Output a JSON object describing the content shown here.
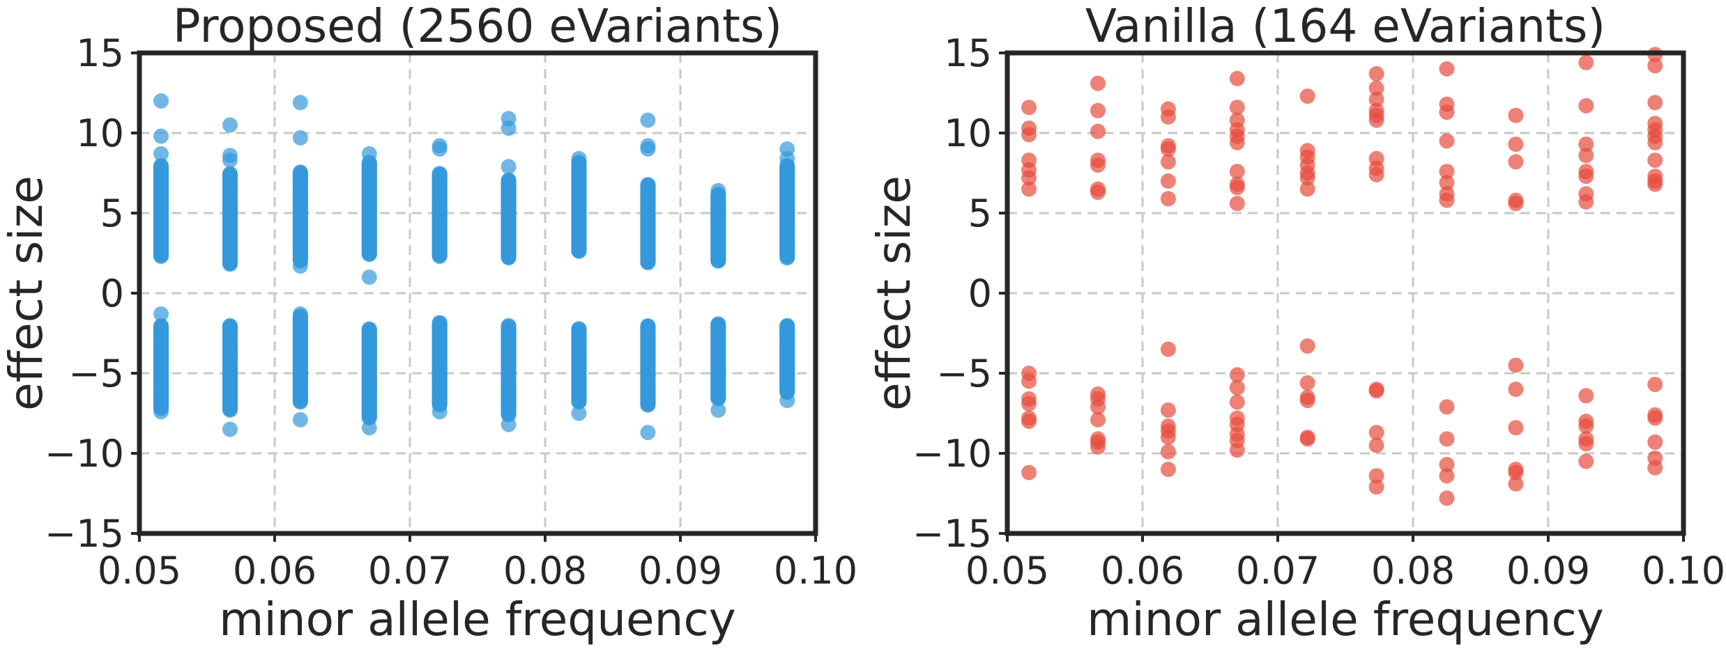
{
  "chart_data": [
    {
      "type": "scatter",
      "title": "Proposed (2560 eVariants)",
      "xlabel": "minor allele frequency",
      "ylabel": "effect size",
      "xlim": [
        0.05,
        0.1
      ],
      "ylim": [
        -15,
        15
      ],
      "xticks": [
        0.05,
        0.06,
        0.07,
        0.08,
        0.09,
        0.1
      ],
      "xtick_labels": [
        "0.05",
        "0.06",
        "0.07",
        "0.08",
        "0.09",
        "0.10"
      ],
      "yticks": [
        -15,
        -10,
        -5,
        0,
        5,
        10,
        15
      ],
      "ytick_labels": [
        "−15",
        "−10",
        "−5",
        "0",
        "5",
        "10",
        "15"
      ],
      "grid": true,
      "color": "#3498db",
      "opacity": 0.7,
      "x_positions": [
        0.0516,
        0.0567,
        0.0619,
        0.067,
        0.0722,
        0.0773,
        0.0825,
        0.0876,
        0.0928,
        0.0979
      ],
      "columns": [
        {
          "x": 0.0516,
          "upper_range": [
            2.3,
            8.0
          ],
          "lower_range": [
            -7.2,
            -2.0
          ],
          "outliers": [
            12.0,
            9.8,
            8.7,
            -1.3,
            -7.4
          ]
        },
        {
          "x": 0.0567,
          "upper_range": [
            1.8,
            7.5
          ],
          "lower_range": [
            -7.3,
            -2.0
          ],
          "outliers": [
            10.5,
            8.6,
            8.3,
            -8.5
          ]
        },
        {
          "x": 0.0619,
          "upper_range": [
            2.0,
            7.6
          ],
          "lower_range": [
            -6.8,
            -1.4
          ],
          "outliers": [
            11.9,
            9.7,
            1.7,
            -1.3,
            -7.9
          ]
        },
        {
          "x": 0.067,
          "upper_range": [
            2.4,
            8.2
          ],
          "lower_range": [
            -7.8,
            -2.2
          ],
          "outliers": [
            8.7,
            1.0,
            -8.4
          ]
        },
        {
          "x": 0.0722,
          "upper_range": [
            2.3,
            7.5
          ],
          "lower_range": [
            -7.0,
            -1.8
          ],
          "outliers": [
            9.2,
            9.0,
            -7.4
          ]
        },
        {
          "x": 0.0773,
          "upper_range": [
            2.2,
            7.1
          ],
          "lower_range": [
            -7.6,
            -2.0
          ],
          "outliers": [
            10.9,
            10.3,
            7.9,
            -8.2
          ]
        },
        {
          "x": 0.0825,
          "upper_range": [
            2.6,
            8.2
          ],
          "lower_range": [
            -6.8,
            -2.2
          ],
          "outliers": [
            8.4,
            -7.5
          ]
        },
        {
          "x": 0.0876,
          "upper_range": [
            1.9,
            6.8
          ],
          "lower_range": [
            -7.0,
            -2.0
          ],
          "outliers": [
            10.8,
            9.2,
            9.0,
            -8.7
          ]
        },
        {
          "x": 0.0928,
          "upper_range": [
            2.0,
            6.2
          ],
          "lower_range": [
            -6.6,
            -1.9
          ],
          "outliers": [
            6.4,
            -7.3
          ]
        },
        {
          "x": 0.0979,
          "upper_range": [
            2.2,
            8.0
          ],
          "lower_range": [
            -6.2,
            -2.0
          ],
          "outliers": [
            9.0,
            8.4,
            -6.7
          ]
        }
      ]
    },
    {
      "type": "scatter",
      "title": "Vanilla (164 eVariants)",
      "xlabel": "minor allele frequency",
      "ylabel": "effect size",
      "xlim": [
        0.05,
        0.1
      ],
      "ylim": [
        -15,
        15
      ],
      "xticks": [
        0.05,
        0.06,
        0.07,
        0.08,
        0.09,
        0.1
      ],
      "xtick_labels": [
        "0.05",
        "0.06",
        "0.07",
        "0.08",
        "0.09",
        "0.10"
      ],
      "yticks": [
        -15,
        -10,
        -5,
        0,
        5,
        10,
        15
      ],
      "ytick_labels": [
        "−15",
        "−10",
        "−5",
        "0",
        "5",
        "10",
        "15"
      ],
      "grid": true,
      "color": "#e74c3c",
      "opacity": 0.7,
      "points": [
        [
          0.0516,
          11.6
        ],
        [
          0.0516,
          10.3
        ],
        [
          0.0516,
          9.9
        ],
        [
          0.0516,
          8.3
        ],
        [
          0.0516,
          7.7
        ],
        [
          0.0516,
          7.2
        ],
        [
          0.0516,
          6.5
        ],
        [
          0.0516,
          -5.0
        ],
        [
          0.0516,
          -5.5
        ],
        [
          0.0516,
          -6.6
        ],
        [
          0.0516,
          -6.9
        ],
        [
          0.0516,
          -7.8
        ],
        [
          0.0516,
          -8.0
        ],
        [
          0.0516,
          -11.2
        ],
        [
          0.0567,
          13.1
        ],
        [
          0.0567,
          11.4
        ],
        [
          0.0567,
          10.1
        ],
        [
          0.0567,
          8.3
        ],
        [
          0.0567,
          8.0
        ],
        [
          0.0567,
          6.5
        ],
        [
          0.0567,
          6.3
        ],
        [
          0.0567,
          -6.3
        ],
        [
          0.0567,
          -6.6
        ],
        [
          0.0567,
          -7.1
        ],
        [
          0.0567,
          -7.9
        ],
        [
          0.0567,
          -9.1
        ],
        [
          0.0567,
          -9.3
        ],
        [
          0.0567,
          -9.6
        ],
        [
          0.0619,
          11.5
        ],
        [
          0.0619,
          11.0
        ],
        [
          0.0619,
          9.2
        ],
        [
          0.0619,
          9.0
        ],
        [
          0.0619,
          8.2
        ],
        [
          0.0619,
          7.0
        ],
        [
          0.0619,
          5.9
        ],
        [
          0.0619,
          -3.5
        ],
        [
          0.0619,
          -7.3
        ],
        [
          0.0619,
          -8.3
        ],
        [
          0.0619,
          -8.6
        ],
        [
          0.0619,
          -9.0
        ],
        [
          0.0619,
          -9.9
        ],
        [
          0.0619,
          -11.0
        ],
        [
          0.067,
          13.4
        ],
        [
          0.067,
          11.6
        ],
        [
          0.067,
          10.8
        ],
        [
          0.067,
          10.2
        ],
        [
          0.067,
          9.8
        ],
        [
          0.067,
          9.4
        ],
        [
          0.067,
          7.6
        ],
        [
          0.067,
          6.8
        ],
        [
          0.067,
          6.6
        ],
        [
          0.067,
          5.6
        ],
        [
          0.067,
          -5.1
        ],
        [
          0.067,
          -5.9
        ],
        [
          0.067,
          -6.8
        ],
        [
          0.067,
          -7.8
        ],
        [
          0.067,
          -8.2
        ],
        [
          0.067,
          -8.8
        ],
        [
          0.067,
          -9.2
        ],
        [
          0.067,
          -9.8
        ],
        [
          0.0722,
          12.3
        ],
        [
          0.0722,
          8.9
        ],
        [
          0.0722,
          8.5
        ],
        [
          0.0722,
          8.0
        ],
        [
          0.0722,
          7.5
        ],
        [
          0.0722,
          7.2
        ],
        [
          0.0722,
          6.5
        ],
        [
          0.0722,
          -3.3
        ],
        [
          0.0722,
          -5.6
        ],
        [
          0.0722,
          -6.5
        ],
        [
          0.0722,
          -6.7
        ],
        [
          0.0722,
          -9.0
        ],
        [
          0.0722,
          -9.1
        ],
        [
          0.0773,
          13.7
        ],
        [
          0.0773,
          12.8
        ],
        [
          0.0773,
          12.1
        ],
        [
          0.0773,
          11.4
        ],
        [
          0.0773,
          11.1
        ],
        [
          0.0773,
          10.8
        ],
        [
          0.0773,
          8.4
        ],
        [
          0.0773,
          7.8
        ],
        [
          0.0773,
          7.4
        ],
        [
          0.0773,
          -6.0
        ],
        [
          0.0773,
          -6.1
        ],
        [
          0.0773,
          -8.7
        ],
        [
          0.0773,
          -9.5
        ],
        [
          0.0773,
          -11.4
        ],
        [
          0.0773,
          -12.1
        ],
        [
          0.0825,
          14.0
        ],
        [
          0.0825,
          11.8
        ],
        [
          0.0825,
          11.3
        ],
        [
          0.0825,
          9.5
        ],
        [
          0.0825,
          7.6
        ],
        [
          0.0825,
          6.9
        ],
        [
          0.0825,
          6.2
        ],
        [
          0.0825,
          5.8
        ],
        [
          0.0825,
          -7.1
        ],
        [
          0.0825,
          -9.1
        ],
        [
          0.0825,
          -10.7
        ],
        [
          0.0825,
          -11.4
        ],
        [
          0.0825,
          -12.8
        ],
        [
          0.0876,
          11.1
        ],
        [
          0.0876,
          9.3
        ],
        [
          0.0876,
          8.2
        ],
        [
          0.0876,
          5.8
        ],
        [
          0.0876,
          5.6
        ],
        [
          0.0876,
          -4.5
        ],
        [
          0.0876,
          -6.0
        ],
        [
          0.0876,
          -8.4
        ],
        [
          0.0876,
          -11.0
        ],
        [
          0.0876,
          -11.2
        ],
        [
          0.0876,
          -11.9
        ],
        [
          0.0928,
          14.4
        ],
        [
          0.0928,
          11.7
        ],
        [
          0.0928,
          9.3
        ],
        [
          0.0928,
          8.6
        ],
        [
          0.0928,
          7.6
        ],
        [
          0.0928,
          7.3
        ],
        [
          0.0928,
          6.2
        ],
        [
          0.0928,
          5.7
        ],
        [
          0.0928,
          -6.4
        ],
        [
          0.0928,
          -8.0
        ],
        [
          0.0928,
          -8.3
        ],
        [
          0.0928,
          -9.1
        ],
        [
          0.0928,
          -9.4
        ],
        [
          0.0928,
          -10.5
        ],
        [
          0.0979,
          14.9
        ],
        [
          0.0979,
          14.2
        ],
        [
          0.0979,
          11.9
        ],
        [
          0.0979,
          10.6
        ],
        [
          0.0979,
          10.2
        ],
        [
          0.0979,
          9.8
        ],
        [
          0.0979,
          9.4
        ],
        [
          0.0979,
          8.3
        ],
        [
          0.0979,
          7.3
        ],
        [
          0.0979,
          7.0
        ],
        [
          0.0979,
          6.8
        ],
        [
          0.0979,
          -5.7
        ],
        [
          0.0979,
          -7.6
        ],
        [
          0.0979,
          -7.8
        ],
        [
          0.0979,
          -9.3
        ],
        [
          0.0979,
          -10.3
        ],
        [
          0.0979,
          -10.9
        ]
      ]
    }
  ]
}
